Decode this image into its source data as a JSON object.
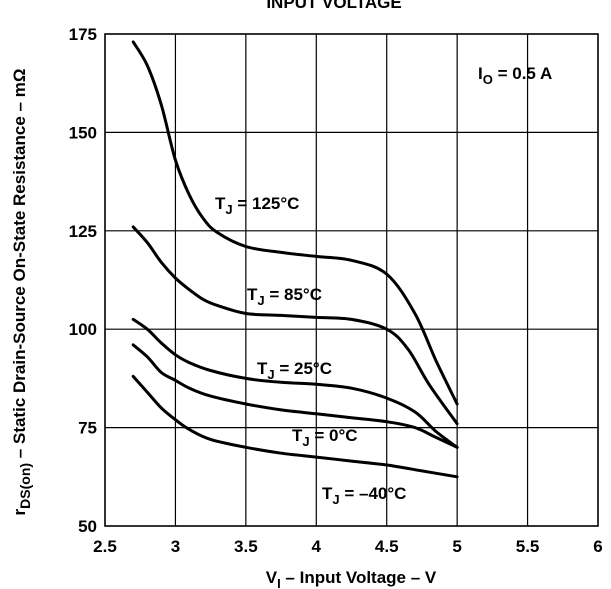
{
  "chart_data": {
    "type": "line",
    "title": "INPUT VOLTAGE",
    "xlabel_main": "V",
    "xlabel_sub": "I",
    "xlabel_rest": " – Input Voltage – V",
    "ylabel_pre": "r",
    "ylabel_sub": "DS(on)",
    "ylabel_rest": " – Static Drain-Source On-State Resistance – mΩ",
    "xlim": [
      2.5,
      6
    ],
    "ylim": [
      50,
      175
    ],
    "xticks": [
      2.5,
      3,
      3.5,
      4,
      4.5,
      5,
      5.5,
      6
    ],
    "xtick_labels": [
      "2.5",
      "3",
      "3.5",
      "4",
      "4.5",
      "5",
      "5.5",
      "6"
    ],
    "yticks": [
      50,
      75,
      100,
      125,
      150,
      175
    ],
    "ytick_labels": [
      "50",
      "75",
      "100",
      "125",
      "150",
      "175"
    ],
    "grid": true,
    "condition": {
      "main": "I",
      "sub": "O",
      "rest": " = 0.5 A"
    },
    "series": [
      {
        "name_main": "T",
        "name_sub": "J",
        "name_rest": " = 125°C",
        "x": [
          2.7,
          2.8,
          2.9,
          3.0,
          3.1,
          3.2,
          3.3,
          3.5,
          3.75,
          4.0,
          4.25,
          4.5,
          4.7,
          4.85,
          5.0
        ],
        "y": [
          173,
          167,
          157,
          143,
          134,
          128,
          124.5,
          121,
          119.5,
          118.5,
          117.5,
          114,
          104,
          92,
          81
        ]
      },
      {
        "name_main": "T",
        "name_sub": "J",
        "name_rest": " = 85°C",
        "x": [
          2.7,
          2.8,
          2.9,
          3.0,
          3.1,
          3.2,
          3.3,
          3.5,
          3.75,
          4.0,
          4.25,
          4.5,
          4.65,
          4.8,
          5.0
        ],
        "y": [
          126,
          122,
          117,
          113,
          110,
          107.5,
          106,
          104,
          103.5,
          103,
          102.5,
          100,
          95,
          86,
          76
        ]
      },
      {
        "name_main": "T",
        "name_sub": "J",
        "name_rest": " = 25°C",
        "x": [
          2.7,
          2.8,
          2.9,
          3.0,
          3.1,
          3.25,
          3.5,
          3.75,
          4.0,
          4.25,
          4.5,
          4.7,
          4.85,
          5.0
        ],
        "y": [
          102.5,
          100,
          96.5,
          93.5,
          91.5,
          89.5,
          87.5,
          86.5,
          86,
          85,
          82.5,
          79,
          74,
          70
        ]
      },
      {
        "name_main": "T",
        "name_sub": "J",
        "name_rest": " = 0°C",
        "x": [
          2.7,
          2.8,
          2.9,
          3.0,
          3.1,
          3.25,
          3.5,
          3.75,
          4.0,
          4.25,
          4.5,
          4.7,
          4.85,
          5.0
        ],
        "y": [
          96,
          93,
          89,
          87,
          85,
          83,
          81,
          79.5,
          78.5,
          77.5,
          76.5,
          75,
          72.5,
          70
        ]
      },
      {
        "name_main": "T",
        "name_sub": "J",
        "name_rest": " = –40°C",
        "x": [
          2.7,
          2.8,
          2.9,
          3.0,
          3.1,
          3.25,
          3.5,
          3.75,
          4.0,
          4.25,
          4.5,
          4.75,
          5.0
        ],
        "y": [
          88,
          84,
          80,
          77,
          74.5,
          72,
          70,
          68.5,
          67.5,
          66.5,
          65.5,
          64,
          62.5
        ]
      }
    ]
  }
}
